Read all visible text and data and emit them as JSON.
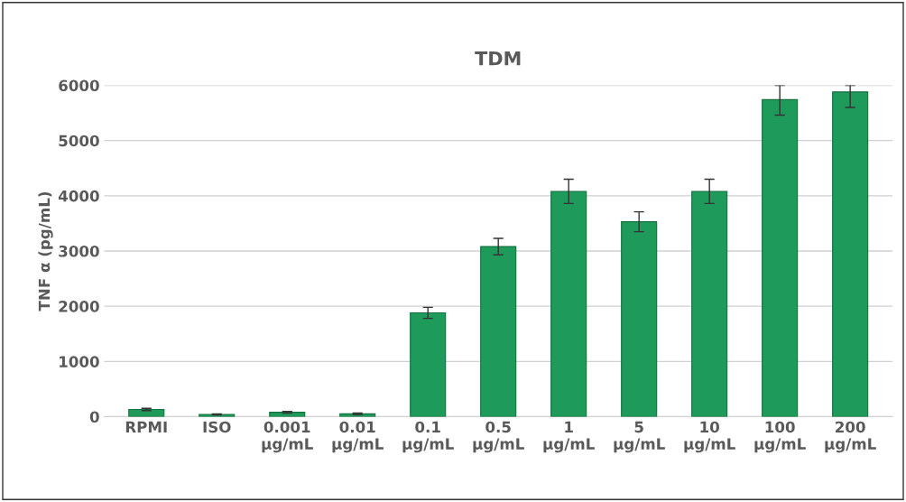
{
  "chart_data": {
    "type": "bar",
    "title": "TDM",
    "ylabel": "TNF α (pg/mL)",
    "categories": [
      "RPMI",
      "ISO",
      "0.001\nμg/mL",
      "0.01\nμg/mL",
      "0.1\nμg/mL",
      "0.5\nμg/mL",
      "1\nμg/mL",
      "5\nμg/mL",
      "10\nμg/mL",
      "100\nμg/mL",
      "200\nμg/mL"
    ],
    "values": [
      130,
      40,
      80,
      50,
      1880,
      3080,
      4080,
      3530,
      4080,
      5740,
      5880
    ],
    "errors": [
      20,
      10,
      15,
      15,
      100,
      150,
      220,
      180,
      220,
      [
        5460,
        6000
      ],
      [
        5600,
        6000
      ]
    ],
    "color": "#1e9a5a",
    "ylim": [
      0,
      6000
    ],
    "yticks": [
      0,
      1000,
      2000,
      3000,
      4000,
      5000,
      6000
    ],
    "grid": "y"
  }
}
